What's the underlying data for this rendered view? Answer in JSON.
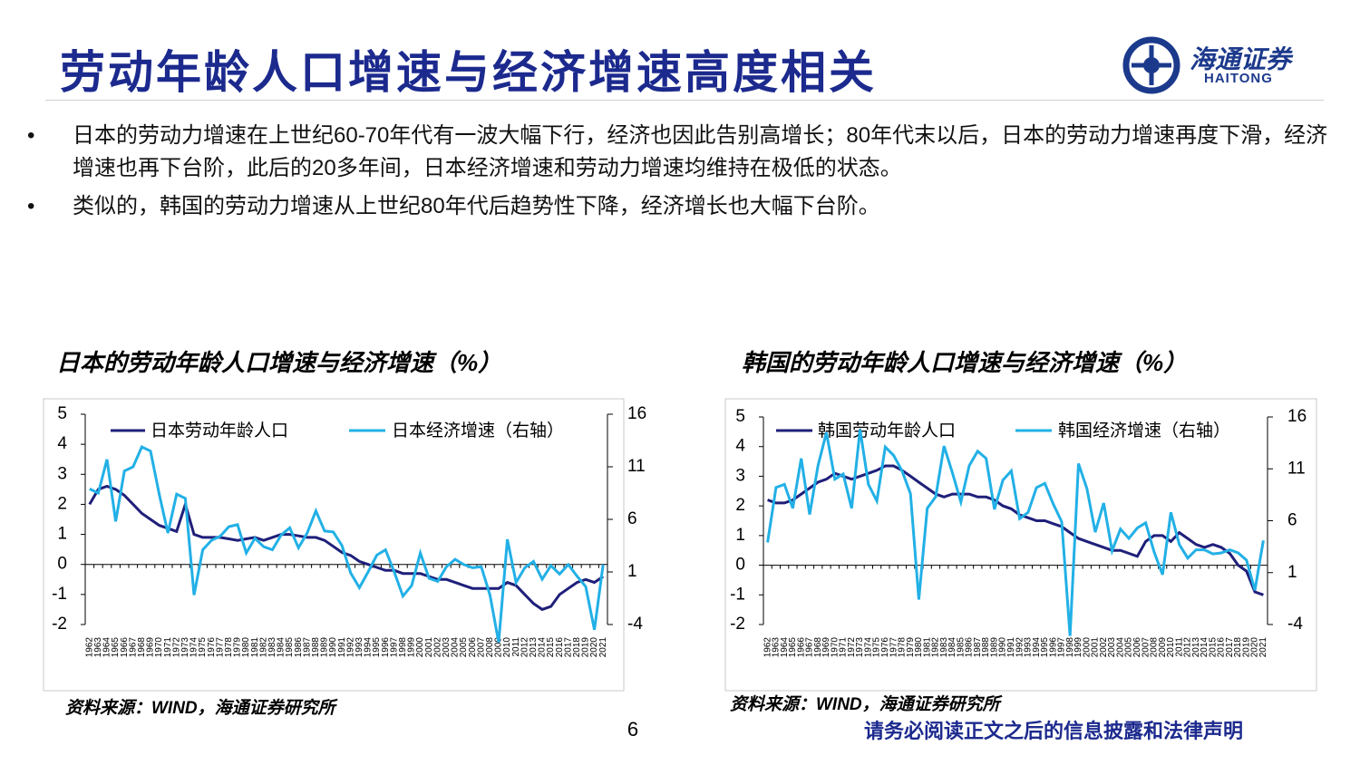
{
  "header": {
    "title": "劳动年龄人口增速与经济增速高度相关",
    "logo_cn": "海通证券",
    "logo_en": "HAITONG"
  },
  "bullets": [
    "日本的劳动力增速在上世纪60-70年代有一波大幅下行，经济也因此告别高增长；80年代末以后，日本的劳动力增速再度下滑，经济增速也再下台阶，此后的20多年间，日本经济增速和劳动力增速均维持在极低的状态。",
    "类似的，韩国的劳动力增速从上世纪80年代后趋势性下降，经济增长也大幅下台阶。"
  ],
  "chart_data": [
    {
      "type": "line",
      "title": "日本的劳动年龄人口增速与经济增速（%）",
      "source": "资料来源：WIND，海通证券研究所",
      "categories": [
        "1962",
        "1963",
        "1964",
        "1965",
        "1966",
        "1967",
        "1968",
        "1969",
        "1970",
        "1971",
        "1972",
        "1973",
        "1974",
        "1975",
        "1976",
        "1977",
        "1978",
        "1979",
        "1980",
        "1981",
        "1982",
        "1983",
        "1984",
        "1985",
        "1986",
        "1987",
        "1988",
        "1989",
        "1990",
        "1991",
        "1992",
        "1993",
        "1994",
        "1995",
        "1996",
        "1997",
        "1998",
        "1999",
        "2000",
        "2001",
        "2002",
        "2003",
        "2004",
        "2005",
        "2006",
        "2007",
        "2008",
        "2009",
        "2010",
        "2011",
        "2012",
        "2013",
        "2014",
        "2015",
        "2016",
        "2017",
        "2018",
        "2019",
        "2020",
        "2021"
      ],
      "series": [
        {
          "name": "日本劳动年龄人口",
          "color": "#1f1f7a",
          "values": [
            2.0,
            2.5,
            2.6,
            2.5,
            2.3,
            2.0,
            1.7,
            1.5,
            1.3,
            1.2,
            1.1,
            2.0,
            1.0,
            0.9,
            0.9,
            0.9,
            0.85,
            0.8,
            0.85,
            0.9,
            0.8,
            0.9,
            1.0,
            1.0,
            0.95,
            0.9,
            0.9,
            0.8,
            0.6,
            0.4,
            0.3,
            0.1,
            0.0,
            -0.1,
            -0.2,
            -0.2,
            -0.3,
            -0.3,
            -0.3,
            -0.4,
            -0.5,
            -0.5,
            -0.6,
            -0.7,
            -0.8,
            -0.8,
            -0.8,
            -0.8,
            -0.6,
            -0.7,
            -1.0,
            -1.3,
            -1.5,
            -1.4,
            -1.0,
            -0.8,
            -0.6,
            -0.5,
            -0.6,
            -0.4
          ]
        },
        {
          "name": "日本经济增速（右轴）",
          "color": "#22b0e6",
          "axis": "y2",
          "values": [
            8.9,
            8.5,
            11.7,
            5.8,
            10.6,
            11.0,
            12.9,
            12.5,
            8.4,
            4.7,
            8.4,
            8.0,
            -1.2,
            3.1,
            4.0,
            4.4,
            5.3,
            5.5,
            2.8,
            4.2,
            3.4,
            3.1,
            4.5,
            5.2,
            3.3,
            4.7,
            6.8,
            4.9,
            4.8,
            3.5,
            0.9,
            -0.5,
            1.0,
            2.6,
            3.1,
            1.0,
            -1.3,
            -0.3,
            2.8,
            0.4,
            0.1,
            1.5,
            2.2,
            1.7,
            1.4,
            1.5,
            -1.2,
            -5.7,
            4.1,
            0.0,
            1.4,
            2.0,
            0.3,
            1.6,
            0.8,
            1.7,
            0.6,
            -0.4,
            -4.5,
            1.7
          ]
        }
      ],
      "ylim": [
        -2,
        5
      ],
      "yticks": [
        -2,
        -1,
        0,
        1,
        2,
        3,
        4,
        5
      ],
      "y2lim": [
        -4,
        16
      ],
      "y2ticks": [
        -4,
        1,
        6,
        11,
        16
      ]
    },
    {
      "type": "line",
      "title": "韩国的劳动年龄人口增速与经济增速（%）",
      "source": "资料来源：WIND，海通证券研究所",
      "categories": [
        "1962",
        "1963",
        "1964",
        "1965",
        "1966",
        "1967",
        "1968",
        "1969",
        "1970",
        "1971",
        "1972",
        "1973",
        "1974",
        "1975",
        "1976",
        "1977",
        "1978",
        "1979",
        "1980",
        "1981",
        "1982",
        "1983",
        "1984",
        "1985",
        "1986",
        "1987",
        "1988",
        "1989",
        "1990",
        "1991",
        "1992",
        "1993",
        "1994",
        "1995",
        "1996",
        "1997",
        "1998",
        "1999",
        "2000",
        "2001",
        "2002",
        "2003",
        "2004",
        "2005",
        "2006",
        "2007",
        "2008",
        "2009",
        "2010",
        "2011",
        "2012",
        "2013",
        "2014",
        "2015",
        "2016",
        "2017",
        "2018",
        "2019",
        "2020",
        "2021"
      ],
      "series": [
        {
          "name": "韩国劳动年龄人口",
          "color": "#1f1f7a",
          "values": [
            2.2,
            2.1,
            2.1,
            2.2,
            2.4,
            2.6,
            2.8,
            2.9,
            3.1,
            3.0,
            2.9,
            3.0,
            3.1,
            3.2,
            3.35,
            3.35,
            3.2,
            3.0,
            2.8,
            2.6,
            2.4,
            2.3,
            2.4,
            2.4,
            2.4,
            2.3,
            2.3,
            2.2,
            2.0,
            1.9,
            1.7,
            1.6,
            1.5,
            1.5,
            1.4,
            1.3,
            1.1,
            0.9,
            0.8,
            0.7,
            0.6,
            0.5,
            0.5,
            0.4,
            0.3,
            0.8,
            1.0,
            1.0,
            0.8,
            1.1,
            0.9,
            0.7,
            0.6,
            0.7,
            0.6,
            0.4,
            0.0,
            -0.2,
            -0.9,
            -1.0
          ]
        },
        {
          "name": "韩国经济增速（右轴）",
          "color": "#22b0e6",
          "axis": "y2",
          "values": [
            3.9,
            9.2,
            9.5,
            7.2,
            12.0,
            6.6,
            11.3,
            14.5,
            10.0,
            10.5,
            7.2,
            14.8,
            9.5,
            7.9,
            13.1,
            12.3,
            10.8,
            8.6,
            -1.6,
            7.2,
            8.3,
            13.2,
            10.6,
            7.8,
            11.3,
            12.7,
            12.0,
            7.1,
            9.9,
            10.8,
            6.2,
            6.8,
            9.2,
            9.6,
            7.6,
            5.9,
            -5.1,
            11.5,
            9.1,
            4.9,
            7.7,
            3.1,
            5.2,
            4.3,
            5.3,
            5.8,
            3.0,
            0.8,
            6.8,
            3.7,
            2.4,
            3.2,
            3.2,
            2.8,
            2.9,
            3.2,
            2.9,
            2.2,
            -0.7,
            4.1
          ]
        }
      ],
      "ylim": [
        -2,
        5
      ],
      "yticks": [
        -2,
        -1,
        0,
        1,
        2,
        3,
        4,
        5
      ],
      "y2lim": [
        -4,
        16
      ],
      "y2ticks": [
        -4,
        1,
        6,
        11,
        16
      ]
    }
  ],
  "footer": {
    "page": "6",
    "disclaimer": "请务必阅读正文之后的信息披露和法律声明"
  }
}
